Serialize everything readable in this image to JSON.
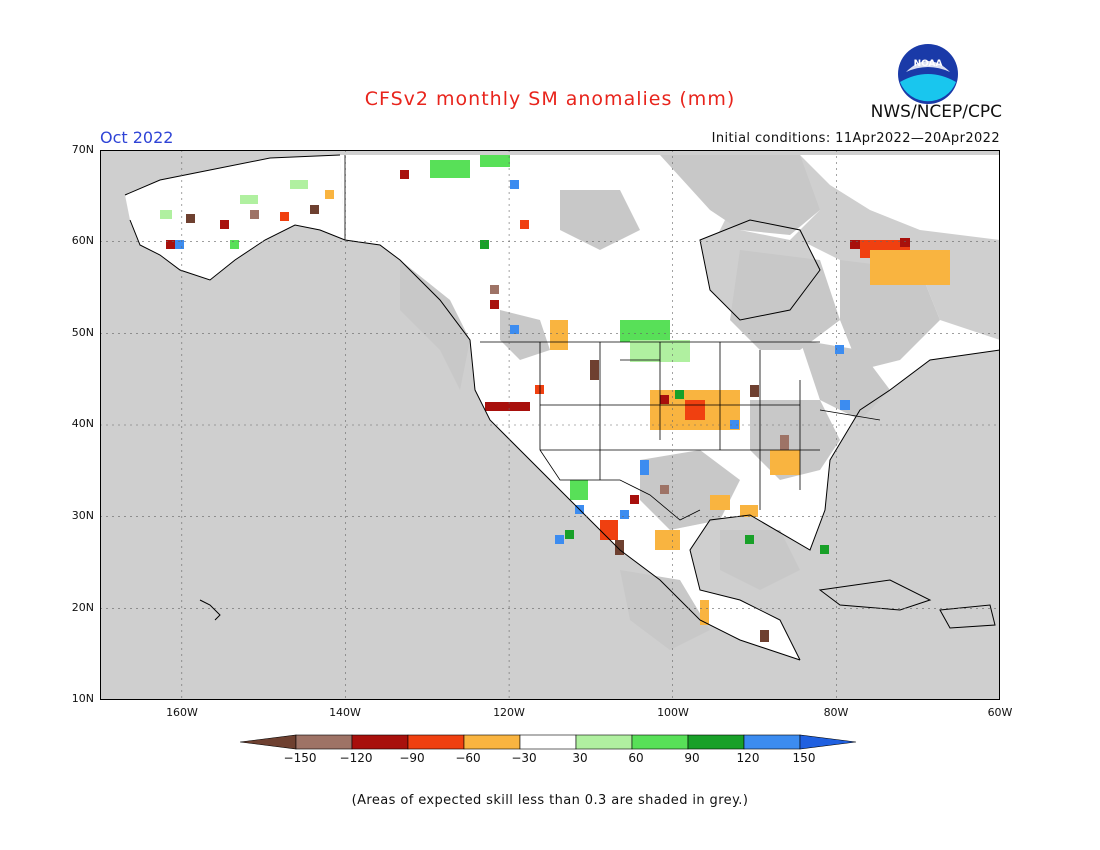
{
  "title": "CFSv2 monthly SM anomalies (mm)",
  "agency": "NWS/NCEP/CPC",
  "logo_text": "NOAA",
  "month": "Oct 2022",
  "initial_conditions": "Initial conditions: 11Apr2022—20Apr2022",
  "lat_labels": [
    "70N",
    "60N",
    "50N",
    "40N",
    "30N",
    "20N",
    "10N"
  ],
  "lon_labels": [
    "160W",
    "140W",
    "120W",
    "100W",
    "80W",
    "60W"
  ],
  "legend": {
    "labels": [
      "−150",
      "−120",
      "−90",
      "−60",
      "−30",
      "30",
      "60",
      "90",
      "120",
      "150"
    ],
    "colors": [
      "#6e4030",
      "#9e7366",
      "#a8100c",
      "#f04010",
      "#f9b440",
      "#ffffff",
      "#b0f0a0",
      "#58e058",
      "#18a028",
      "#3c8cf0",
      "#2060e0"
    ]
  },
  "note": "(Areas of expected skill less than 0.3 are shaded in grey.)",
  "colors": {
    "ocean": "#cfcfcf",
    "land_white": "#ffffff",
    "grey_skill": "#c8c8c8"
  }
}
